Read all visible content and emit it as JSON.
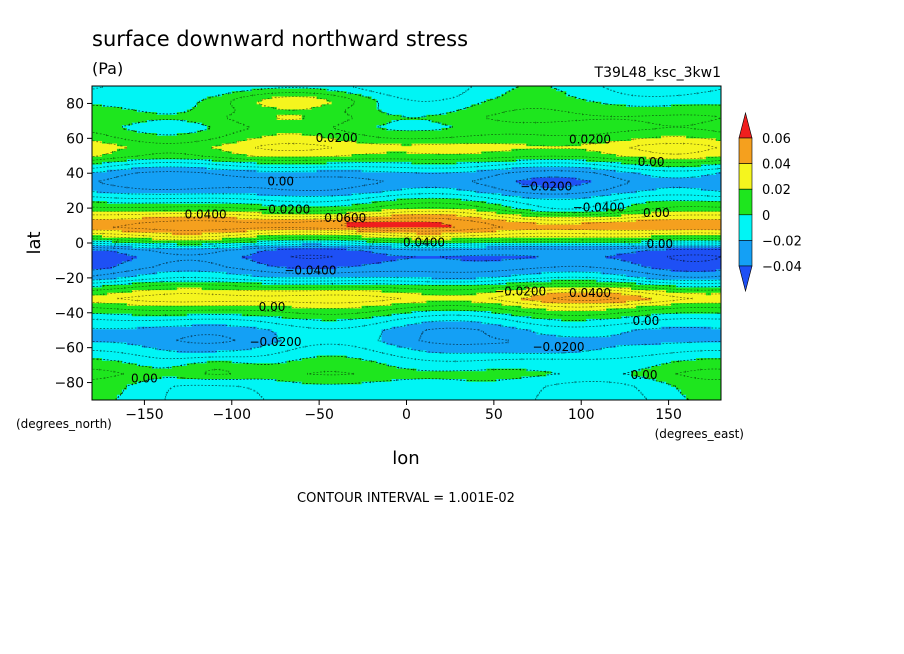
{
  "chart_data": {
    "type": "heatmap",
    "title": "surface downward northward stress",
    "units": "(Pa)",
    "dataset": "T39L48_ksc_3kw1",
    "xlabel": "lon",
    "ylabel": "lat",
    "xunits": "(degrees_east)",
    "yunits": "(degrees_north)",
    "xlim": [
      -180,
      180
    ],
    "ylim": [
      -90,
      90
    ],
    "xticks": [
      -150,
      -100,
      -50,
      0,
      50,
      100,
      150
    ],
    "yticks": [
      80,
      60,
      40,
      20,
      0,
      -20,
      -40,
      -60,
      -80
    ],
    "footer": "CONTOUR INTERVAL = 1.001E-02",
    "colorbar": {
      "labels": [
        "0.06",
        "0.04",
        "0.02",
        "0",
        "−0.02",
        "−0.04"
      ],
      "levels": [
        0.06,
        0.04,
        0.02,
        0,
        -0.02,
        -0.04
      ],
      "colors": {
        "above_0.06": "#f01e1e",
        "0.04_0.06": "#f5a01e",
        "0.02_0.04": "#f5f51e",
        "0_0.02": "#1ee61e",
        "m0.02_0": "#00f5f5",
        "m0.04_m0.02": "#14a0f5",
        "below_m0.04": "#1e50f5"
      }
    },
    "zonal_profile": {
      "lat": [
        -90,
        -82,
        -75,
        -68,
        -62,
        -56,
        -50,
        -44,
        -38,
        -32,
        -28,
        -24,
        -20,
        -14,
        -8,
        -4,
        -1,
        2,
        5,
        9,
        12,
        16,
        20,
        25,
        30,
        35,
        40,
        45,
        50,
        55,
        60,
        66,
        72,
        78,
        84,
        90
      ],
      "value": [
        -0.008,
        -0.006,
        0.004,
        -0.005,
        -0.015,
        -0.024,
        -0.022,
        -0.008,
        0.012,
        0.034,
        0.022,
        0.004,
        -0.018,
        -0.036,
        -0.043,
        -0.036,
        -0.012,
        0.012,
        0.03,
        0.05,
        0.046,
        0.03,
        0.01,
        -0.008,
        -0.026,
        -0.034,
        -0.026,
        -0.006,
        0.018,
        0.026,
        0.014,
        0.004,
        0.01,
        0.002,
        -0.006,
        -0.01
      ]
    },
    "contour_labels": [
      {
        "text": "0.0200",
        "lon": -40,
        "lat": 58
      },
      {
        "text": "0.0200",
        "lon": 105,
        "lat": 57
      },
      {
        "text": "0.00",
        "lon": 140,
        "lat": 44
      },
      {
        "text": "0.00",
        "lon": -72,
        "lat": 33
      },
      {
        "text": "−0.0200",
        "lon": 80,
        "lat": 30
      },
      {
        "text": "−0.0400",
        "lon": 110,
        "lat": 18
      },
      {
        "text": "0.00",
        "lon": 143,
        "lat": 15
      },
      {
        "text": "0.0400",
        "lon": -115,
        "lat": 14
      },
      {
        "text": "−0.0200",
        "lon": -70,
        "lat": 17
      },
      {
        "text": "0.0600",
        "lon": -35,
        "lat": 12
      },
      {
        "text": "0.0400",
        "lon": 10,
        "lat": -2
      },
      {
        "text": "−0.0400",
        "lon": -55,
        "lat": -18
      },
      {
        "text": "0.00",
        "lon": 145,
        "lat": -3
      },
      {
        "text": "−0.0200",
        "lon": 65,
        "lat": -30
      },
      {
        "text": "0.0400",
        "lon": 105,
        "lat": -31
      },
      {
        "text": "0.00",
        "lon": -77,
        "lat": -39
      },
      {
        "text": "−0.0200",
        "lon": -75,
        "lat": -59
      },
      {
        "text": "−0.0200",
        "lon": 87,
        "lat": -62
      },
      {
        "text": "0.00",
        "lon": 137,
        "lat": -47
      },
      {
        "text": "0.00",
        "lon": -150,
        "lat": -80
      },
      {
        "text": "0.00",
        "lon": 136,
        "lat": -78
      }
    ]
  }
}
